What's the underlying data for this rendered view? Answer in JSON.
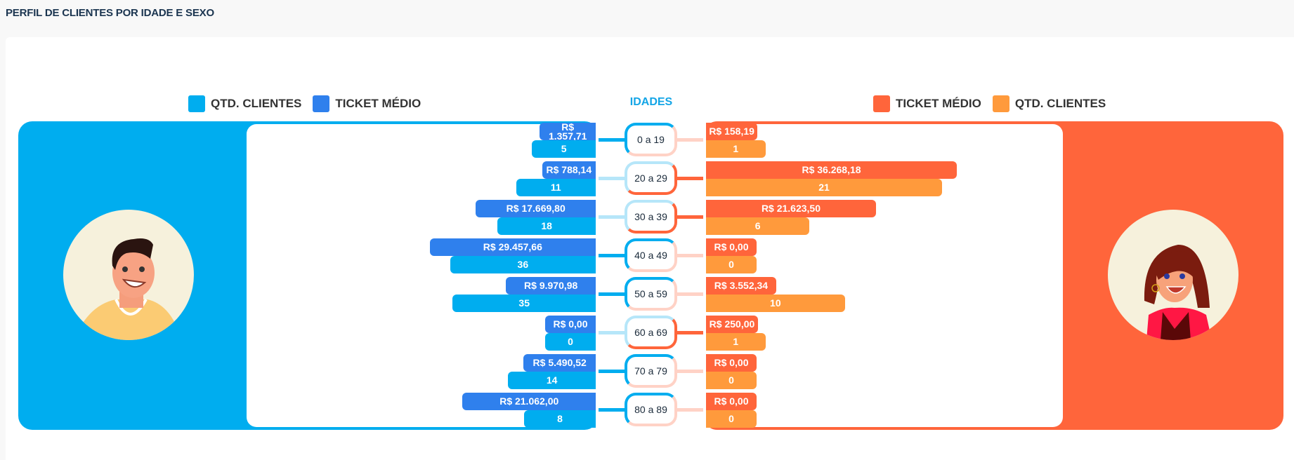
{
  "title": "PERFIL DE CLIENTES POR IDADE E SEXO",
  "colors": {
    "male_panel": "#00adef",
    "male_ticket": "#2f80ed",
    "male_qty": "#00adef",
    "male_light": "#b6e6f9",
    "female_panel": "#ff653b",
    "female_ticket": "#ff653b",
    "female_qty": "#ff9a3c",
    "female_light": "#ffd2c6"
  },
  "legend": {
    "left": [
      "QTD. CLIENTES",
      "TICKET MÉDIO"
    ],
    "center": "IDADES",
    "right": [
      "TICKET MÉDIO",
      "QTD. CLIENTES"
    ]
  },
  "chart_data": {
    "type": "bar",
    "title": "PERFIL DE CLIENTES POR IDADE E SEXO",
    "categories": [
      "0 a 19",
      "20 a 29",
      "30 a 39",
      "40 a 49",
      "50 a 59",
      "60 a 69",
      "70 a 79",
      "80 a 89"
    ],
    "series": [
      {
        "name": "Masculino - TICKET MÉDIO",
        "values": [
          1357.71,
          788.14,
          17669.8,
          29457.66,
          9970.98,
          0,
          5490.52,
          21062.0
        ],
        "labels": [
          "R$ 1.357,71",
          "R$ 788,14",
          "R$ 17.669,80",
          "R$ 29.457,66",
          "R$ 9.970,98",
          "R$ 0,00",
          "R$ 5.490,52",
          "R$ 21.062,00"
        ]
      },
      {
        "name": "Masculino - QTD. CLIENTES",
        "values": [
          5,
          11,
          18,
          36,
          35,
          0,
          14,
          8
        ],
        "labels": [
          "5",
          "11",
          "18",
          "36",
          "35",
          "0",
          "14",
          "8"
        ]
      },
      {
        "name": "Feminino - TICKET MÉDIO",
        "values": [
          158.19,
          36268.18,
          21623.5,
          0,
          3552.34,
          250.0,
          0,
          0
        ],
        "labels": [
          "R$ 158,19",
          "R$ 36.268,18",
          "R$ 21.623,50",
          "R$ 0,00",
          "R$ 3.552,34",
          "R$ 250,00",
          "R$ 0,00",
          "R$ 0,00"
        ]
      },
      {
        "name": "Feminino - QTD. CLIENTES",
        "values": [
          1,
          21,
          6,
          0,
          10,
          1,
          0,
          0
        ],
        "labels": [
          "1",
          "21",
          "6",
          "0",
          "10",
          "1",
          "0",
          "0"
        ]
      }
    ]
  }
}
